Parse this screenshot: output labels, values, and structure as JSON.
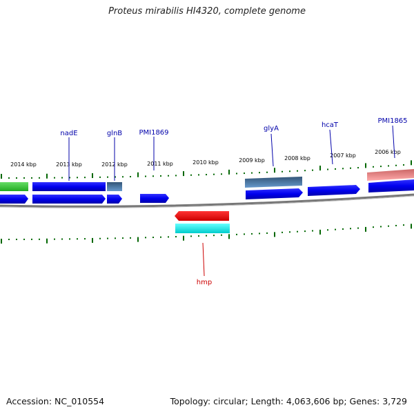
{
  "title": "Proteus mirabilis HI4320, complete genome",
  "accession_line": "Accession: NC_010554",
  "summary_line": "Topology: circular; Length: 4,063,606 bp; Genes: 3,729",
  "tick_labels": [
    "2014 kbp",
    "2013 kbp",
    "2012 kbp",
    "2011 kbp",
    "2010 kbp",
    "2009 kbp",
    "2008 kbp",
    "2007 kbp",
    "2006 kbp"
  ],
  "gene_labels": [
    {
      "id": "nadE",
      "text": "nadE",
      "color": "#0000aa"
    },
    {
      "id": "glnB",
      "text": "glnB",
      "color": "#0000aa"
    },
    {
      "id": "PMI1869",
      "text": "PMI1869",
      "color": "#0000aa"
    },
    {
      "id": "glyA",
      "text": "glyA",
      "color": "#0000aa"
    },
    {
      "id": "hcaT",
      "text": "hcaT",
      "color": "#0000aa"
    },
    {
      "id": "PMI1865",
      "text": "PMI1865",
      "color": "#0000aa"
    },
    {
      "id": "hmp",
      "text": "hmp",
      "color": "#cc0000"
    }
  ],
  "colors": {
    "forward_cds": "#0000ee",
    "green_feature": "#33bb33",
    "steelblue_feature": "#4477aa",
    "pink_feature": "#ee8888",
    "reverse_cds": "#ee0000",
    "cyan_feature": "#00eeee",
    "backbone": "#888888",
    "tick": "#006600"
  }
}
